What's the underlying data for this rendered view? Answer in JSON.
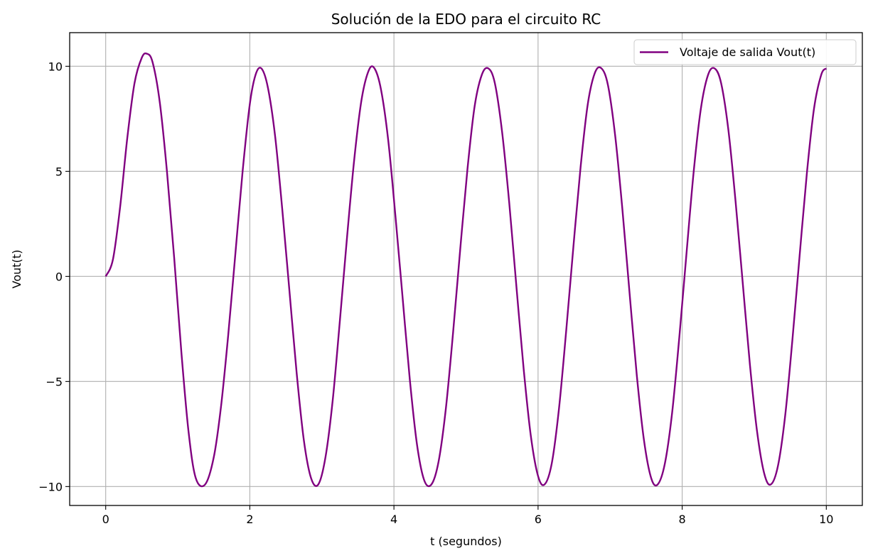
{
  "chart_data": {
    "type": "line",
    "title": "Solución de la EDO para el circuito RC",
    "xlabel": "t (segundos)",
    "ylabel": "Vout(t)",
    "xlim": [
      -0.5,
      10.5
    ],
    "ylim": [
      -10.9,
      11.6
    ],
    "xticks": [
      0,
      2,
      4,
      6,
      8,
      10
    ],
    "yticks": [
      -10,
      -5,
      0,
      5,
      10
    ],
    "xtick_labels": [
      "0",
      "2",
      "4",
      "6",
      "8",
      "10"
    ],
    "ytick_labels": [
      "−10",
      "−5",
      "0",
      "5",
      "10"
    ],
    "grid": true,
    "legend_position": "top-right",
    "series": [
      {
        "name": "Voltaje de salida Vout(t)",
        "color": "#800080",
        "x": [
          0.0,
          0.1,
          0.2,
          0.3,
          0.4,
          0.5,
          0.57,
          0.65,
          0.75,
          0.85,
          0.95,
          1.05,
          1.15,
          1.25,
          1.38,
          1.5,
          1.6,
          1.7,
          1.8,
          1.9,
          2.0,
          2.08,
          2.16,
          2.25,
          2.35,
          2.45,
          2.55,
          2.65,
          2.75,
          2.85,
          2.95,
          3.05,
          3.15,
          3.25,
          3.35,
          3.45,
          3.55,
          3.65,
          3.73,
          3.82,
          3.92,
          4.02,
          4.12,
          4.22,
          4.32,
          4.42,
          4.52,
          4.62,
          4.72,
          4.82,
          4.92,
          5.02,
          5.12,
          5.22,
          5.31,
          5.4,
          5.5,
          5.6,
          5.7,
          5.8,
          5.9,
          6.0,
          6.09,
          6.19,
          6.29,
          6.39,
          6.49,
          6.59,
          6.69,
          6.79,
          6.88,
          6.97,
          7.07,
          7.17,
          7.27,
          7.37,
          7.47,
          7.57,
          7.66,
          7.76,
          7.86,
          7.96,
          8.06,
          8.16,
          8.26,
          8.36,
          8.45,
          8.54,
          8.64,
          8.74,
          8.84,
          8.94,
          9.04,
          9.14,
          9.23,
          9.33,
          9.43,
          9.53,
          9.63,
          9.73,
          9.83,
          9.93,
          10.0
        ],
        "y": [
          0.0,
          0.8,
          3.3,
          6.6,
          9.2,
          10.4,
          10.6,
          10.2,
          8.3,
          5.0,
          0.9,
          -3.6,
          -7.4,
          -9.6,
          -9.9,
          -8.6,
          -6.2,
          -2.8,
          1.1,
          5.0,
          8.2,
          9.6,
          9.9,
          9.0,
          6.7,
          3.2,
          -0.7,
          -4.6,
          -7.8,
          -9.6,
          -9.9,
          -8.6,
          -5.9,
          -2.1,
          1.9,
          5.6,
          8.4,
          9.8,
          9.9,
          8.9,
          6.5,
          2.9,
          -1.0,
          -4.9,
          -8.0,
          -9.7,
          -9.9,
          -8.8,
          -6.3,
          -2.7,
          1.3,
          5.1,
          8.1,
          9.6,
          9.9,
          9.2,
          6.9,
          3.5,
          -0.5,
          -4.4,
          -7.6,
          -9.5,
          -9.9,
          -8.9,
          -6.3,
          -2.6,
          1.4,
          5.2,
          8.2,
          9.7,
          9.9,
          9.1,
          6.7,
          3.2,
          -0.8,
          -4.7,
          -7.8,
          -9.6,
          -9.9,
          -8.9,
          -6.5,
          -2.9,
          1.1,
          5.0,
          8.0,
          9.6,
          9.9,
          9.2,
          7.0,
          3.6,
          -0.3,
          -4.2,
          -7.4,
          -9.4,
          -9.9,
          -9.0,
          -6.6,
          -3.0,
          1.0,
          4.9,
          8.0,
          9.6,
          9.9
        ]
      }
    ]
  }
}
